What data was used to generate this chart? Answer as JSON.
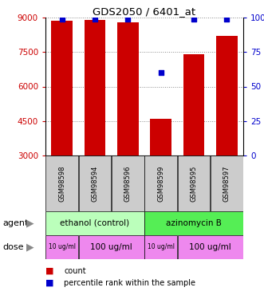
{
  "title": "GDS2050 / 6401_at",
  "samples": [
    "GSM98598",
    "GSM98594",
    "GSM98596",
    "GSM98599",
    "GSM98595",
    "GSM98597"
  ],
  "counts": [
    8850,
    8900,
    8800,
    4600,
    7400,
    8200
  ],
  "percentiles": [
    99,
    99,
    99,
    60,
    99,
    99
  ],
  "ylim": [
    3000,
    9000
  ],
  "yticks": [
    3000,
    4500,
    6000,
    7500,
    9000
  ],
  "ytick_labels": [
    "3000",
    "4500",
    "6000",
    "7500",
    "9000"
  ],
  "right_yticks": [
    0,
    25,
    50,
    75,
    100
  ],
  "right_ytick_labels": [
    "0",
    "25",
    "50",
    "75",
    "100%"
  ],
  "bar_color": "#cc0000",
  "dot_color": "#0000cc",
  "agent_ethanol_color": "#bbffbb",
  "agent_azinomycin_color": "#55ee55",
  "dose_color": "#ee88ee",
  "agent_groups": [
    {
      "label": "ethanol (control)",
      "start": 0,
      "end": 3
    },
    {
      "label": "azinomycin B",
      "start": 3,
      "end": 6
    }
  ],
  "dose_groups": [
    {
      "label": "10 ug/ml",
      "start": 0,
      "end": 1,
      "small": true
    },
    {
      "label": "100 ug/ml",
      "start": 1,
      "end": 3,
      "small": false
    },
    {
      "label": "10 ug/ml",
      "start": 3,
      "end": 4,
      "small": true
    },
    {
      "label": "100 ug/ml",
      "start": 4,
      "end": 6,
      "small": false
    }
  ],
  "grid_color": "#888888",
  "label_color_left": "#cc0000",
  "label_color_right": "#0000cc",
  "bar_width": 0.65,
  "sample_bg_color": "#cccccc"
}
